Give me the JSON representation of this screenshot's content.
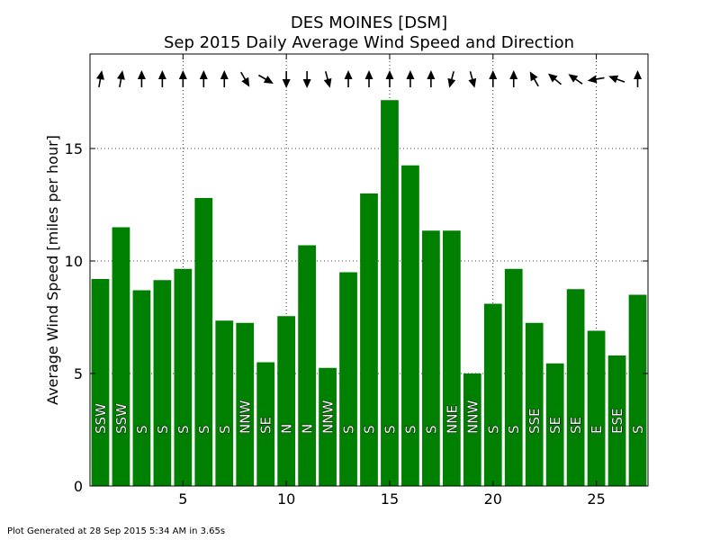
{
  "chart_data": {
    "type": "bar",
    "title": "DES MOINES [DSM]",
    "subtitle": "Sep 2015 Daily Average Wind Speed and Direction",
    "xlabel": "",
    "ylabel": "Average Wind Speed [miles per hour]",
    "xlim": [
      0.5,
      27.5
    ],
    "ylim": [
      0,
      19.2
    ],
    "xticks": [
      5,
      10,
      15,
      20,
      25
    ],
    "yticks": [
      0,
      5,
      10,
      15
    ],
    "grid": true,
    "bar_color": "#008000",
    "days": [
      1,
      2,
      3,
      4,
      5,
      6,
      7,
      8,
      9,
      10,
      11,
      12,
      13,
      14,
      15,
      16,
      17,
      18,
      19,
      20,
      21,
      22,
      23,
      24,
      25,
      26,
      27
    ],
    "values": [
      9.2,
      11.5,
      8.7,
      9.15,
      9.65,
      12.8,
      7.35,
      7.25,
      5.5,
      7.55,
      10.7,
      5.25,
      9.5,
      13.0,
      17.15,
      14.25,
      11.35,
      11.35,
      5.0,
      8.1,
      9.65,
      7.25,
      5.45,
      8.75,
      6.9,
      5.8,
      8.5
    ],
    "directions": [
      "SSW",
      "SSW",
      "S",
      "S",
      "S",
      "S",
      "S",
      "NNW",
      "SE",
      "N",
      "N",
      "NNW",
      "S",
      "S",
      "S",
      "S",
      "S",
      "NNE",
      "NNW",
      "S",
      "S",
      "SSE",
      "SE",
      "SE",
      "E",
      "ESE",
      "S"
    ],
    "arrow_bearings": [
      10,
      10,
      0,
      0,
      0,
      0,
      0,
      150,
      120,
      180,
      180,
      165,
      0,
      0,
      0,
      0,
      0,
      195,
      165,
      0,
      0,
      330,
      310,
      305,
      260,
      290,
      0
    ]
  },
  "footer": "Plot Generated at 28 Sep 2015 5:34 AM in 3.65s"
}
